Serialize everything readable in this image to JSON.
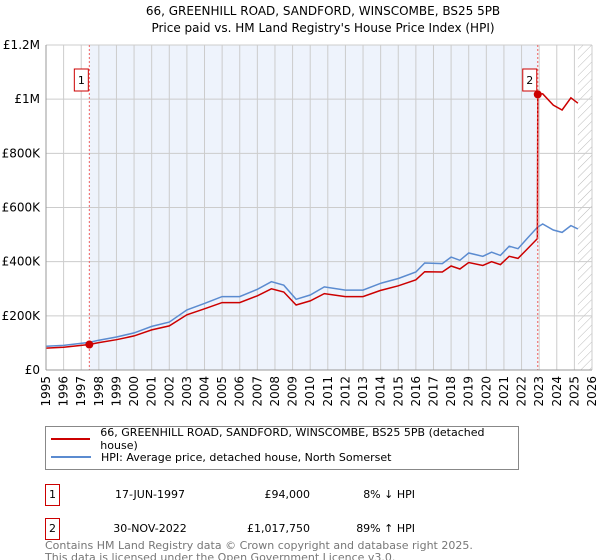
{
  "chart_data": {
    "type": "line",
    "title": "66, GREENHILL ROAD, SANDFORD, WINSCOMBE, BS25 5PB",
    "subtitle": "Price paid vs. HM Land Registry's House Price Index (HPI)",
    "xlim": [
      1995,
      2026
    ],
    "ylim": [
      0,
      1200000
    ],
    "x_ticks": [
      "1995",
      "1996",
      "1997",
      "1998",
      "1999",
      "2000",
      "2001",
      "2002",
      "2003",
      "2004",
      "2005",
      "2006",
      "2007",
      "2008",
      "2009",
      "2010",
      "2011",
      "2012",
      "2013",
      "2014",
      "2015",
      "2016",
      "2017",
      "2018",
      "2019",
      "2020",
      "2021",
      "2022",
      "2023",
      "2024",
      "2025",
      "2026"
    ],
    "y_ticks": [
      {
        "v": 0,
        "label": "£0"
      },
      {
        "v": 200000,
        "label": "£200K"
      },
      {
        "v": 400000,
        "label": "£400K"
      },
      {
        "v": 600000,
        "label": "£600K"
      },
      {
        "v": 800000,
        "label": "£800K"
      },
      {
        "v": 1000000,
        "label": "£1M"
      },
      {
        "v": 1200000,
        "label": "£1.2M"
      }
    ],
    "grid": true,
    "ownership_period": [
      1997.46,
      2022.92
    ],
    "forecast_from": 2025.2,
    "series": [
      {
        "name": "66, GREENHILL ROAD, SANDFORD, WINSCOMBE, BS25 5PB (detached house)",
        "color": "#cc0000",
        "x": [
          1995,
          1996,
          1997.46,
          1998,
          1999,
          2000,
          2001,
          2002,
          2003,
          2004,
          2005,
          2006,
          2007,
          2007.8,
          2008.5,
          2009.2,
          2010,
          2010.8,
          2012,
          2013,
          2014,
          2015,
          2016,
          2016.5,
          2017.5,
          2018,
          2018.5,
          2019,
          2019.8,
          2020.3,
          2020.8,
          2021.3,
          2021.8,
          2022.3,
          2022.9,
          2022.92,
          2023.2,
          2023.8,
          2024.3,
          2024.8,
          2025.2
        ],
        "y": [
          81000,
          84000,
          94000,
          101000,
          112000,
          126000,
          148000,
          163000,
          204000,
          226000,
          249000,
          249000,
          274000,
          300000,
          288000,
          240000,
          255000,
          282000,
          271000,
          271000,
          294000,
          311000,
          333000,
          363000,
          362000,
          384000,
          373000,
          397000,
          386000,
          400000,
          389000,
          420000,
          412000,
          445000,
          485000,
          1017750,
          1020000,
          978000,
          960000,
          1005000,
          985000
        ]
      },
      {
        "name": "HPI: Average price, detached house, North Somerset",
        "color": "#5b8bd0",
        "x": [
          1995,
          1996,
          1997.46,
          1998,
          1999,
          2000,
          2001,
          2002,
          2003,
          2004,
          2005,
          2006,
          2007,
          2007.8,
          2008.5,
          2009.2,
          2010,
          2010.8,
          2012,
          2013,
          2014,
          2015,
          2016,
          2016.5,
          2017.5,
          2018,
          2018.5,
          2019,
          2019.8,
          2020.3,
          2020.8,
          2021.3,
          2021.8,
          2022.3,
          2022.9,
          2023.2,
          2023.8,
          2024.3,
          2024.8,
          2025.2
        ],
        "y": [
          88000,
          91000,
          102000,
          110000,
          122000,
          137000,
          161000,
          177000,
          222000,
          246000,
          271000,
          271000,
          298000,
          326000,
          313000,
          261000,
          277000,
          307000,
          295000,
          295000,
          320000,
          338000,
          362000,
          395000,
          393000,
          417000,
          405000,
          432000,
          420000,
          435000,
          423000,
          457000,
          448000,
          484000,
          527000,
          539000,
          517000,
          508000,
          533000,
          521000
        ]
      }
    ],
    "sales": [
      {
        "id": "1",
        "x": 1997.46,
        "y": 94000,
        "date": "17-JUN-1997",
        "price": "£94,000",
        "hpi": "8% ↓ HPI"
      },
      {
        "id": "2",
        "x": 2022.92,
        "y": 1017750,
        "date": "30-NOV-2022",
        "price": "£1,017,750",
        "hpi": "89% ↑ HPI"
      }
    ]
  },
  "legend": {
    "property": "66, GREENHILL ROAD, SANDFORD, WINSCOMBE, BS25 5PB (detached house)",
    "hpi": "HPI: Average price, detached house, North Somerset"
  },
  "footer": {
    "line1": "Contains HM Land Registry data © Crown copyright and database right 2025.",
    "line2": "This data is licensed under the Open Government Licence v3.0."
  }
}
